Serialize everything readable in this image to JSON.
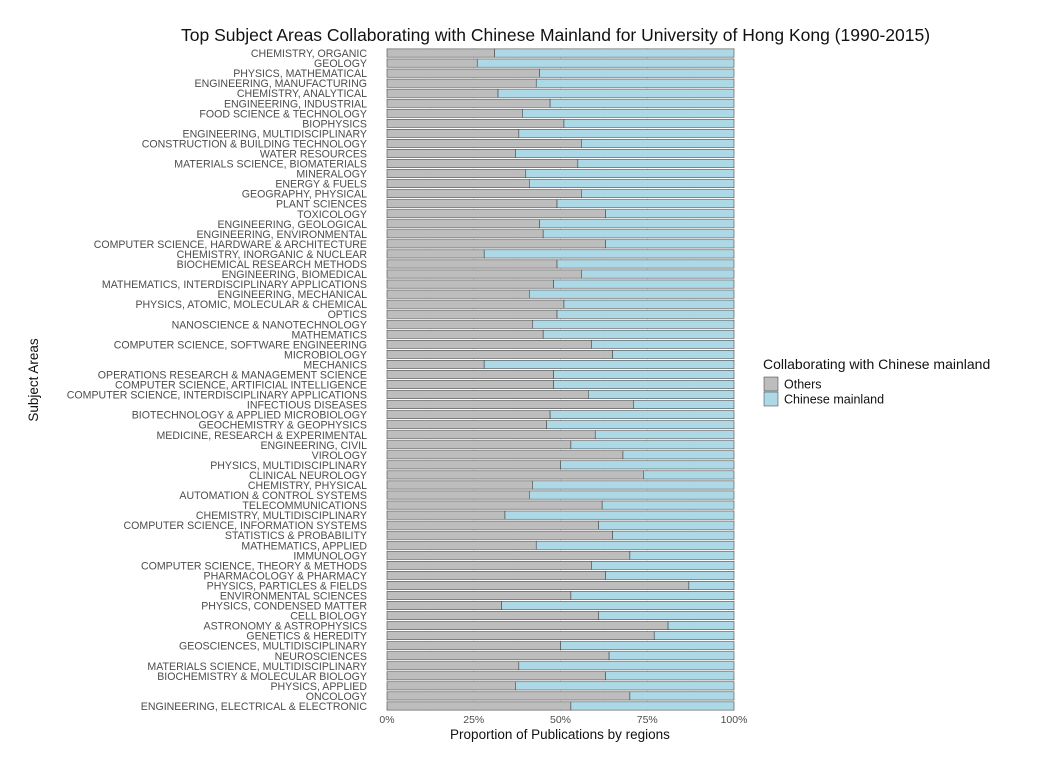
{
  "chart_data": {
    "type": "bar",
    "orientation": "horizontal",
    "stacked": true,
    "title": "Top Subject Areas Collaborating with Chinese Mainland for  University of Hong Kong  (1990-2015)",
    "xlabel": "Proportion of Publications by regions",
    "ylabel": "Subject Areas",
    "xlim": [
      0,
      1
    ],
    "x_ticks": [
      "0%",
      "25%",
      "50%",
      "75%",
      "100%"
    ],
    "grid": true,
    "legend": {
      "title": "Collaborating with Chinese mainland",
      "position": "right",
      "entries": [
        {
          "label": "Others",
          "color": "#bdbdbd"
        },
        {
          "label": "Chinese mainland",
          "color": "#add8e6"
        }
      ]
    },
    "categories": [
      "CHEMISTRY, ORGANIC",
      "GEOLOGY",
      "PHYSICS, MATHEMATICAL",
      "ENGINEERING, MANUFACTURING",
      "CHEMISTRY, ANALYTICAL",
      "ENGINEERING, INDUSTRIAL",
      "FOOD SCIENCE & TECHNOLOGY",
      "BIOPHYSICS",
      "ENGINEERING, MULTIDISCIPLINARY",
      "CONSTRUCTION & BUILDING TECHNOLOGY",
      "WATER RESOURCES",
      "MATERIALS SCIENCE, BIOMATERIALS",
      "MINERALOGY",
      "ENERGY & FUELS",
      "GEOGRAPHY, PHYSICAL",
      "PLANT SCIENCES",
      "TOXICOLOGY",
      "ENGINEERING, GEOLOGICAL",
      "ENGINEERING, ENVIRONMENTAL",
      "COMPUTER SCIENCE, HARDWARE & ARCHITECTURE",
      "CHEMISTRY, INORGANIC & NUCLEAR",
      "BIOCHEMICAL RESEARCH METHODS",
      "ENGINEERING, BIOMEDICAL",
      "MATHEMATICS, INTERDISCIPLINARY APPLICATIONS",
      "ENGINEERING, MECHANICAL",
      "PHYSICS, ATOMIC, MOLECULAR & CHEMICAL",
      "OPTICS",
      "NANOSCIENCE & NANOTECHNOLOGY",
      "MATHEMATICS",
      "COMPUTER SCIENCE, SOFTWARE ENGINEERING",
      "MICROBIOLOGY",
      "MECHANICS",
      "OPERATIONS RESEARCH & MANAGEMENT SCIENCE",
      "COMPUTER SCIENCE, ARTIFICIAL INTELLIGENCE",
      "COMPUTER SCIENCE, INTERDISCIPLINARY APPLICATIONS",
      "INFECTIOUS DISEASES",
      "BIOTECHNOLOGY & APPLIED MICROBIOLOGY",
      "GEOCHEMISTRY & GEOPHYSICS",
      "MEDICINE, RESEARCH & EXPERIMENTAL",
      "ENGINEERING, CIVIL",
      "VIROLOGY",
      "PHYSICS, MULTIDISCIPLINARY",
      "CLINICAL NEUROLOGY",
      "CHEMISTRY, PHYSICAL",
      "AUTOMATION & CONTROL SYSTEMS",
      "TELECOMMUNICATIONS",
      "CHEMISTRY, MULTIDISCIPLINARY",
      "COMPUTER SCIENCE, INFORMATION SYSTEMS",
      "STATISTICS & PROBABILITY",
      "MATHEMATICS, APPLIED",
      "IMMUNOLOGY",
      "COMPUTER SCIENCE, THEORY & METHODS",
      "PHARMACOLOGY & PHARMACY",
      "PHYSICS, PARTICLES & FIELDS",
      "ENVIRONMENTAL SCIENCES",
      "PHYSICS, CONDENSED MATTER",
      "CELL BIOLOGY",
      "ASTRONOMY & ASTROPHYSICS",
      "GENETICS & HEREDITY",
      "GEOSCIENCES, MULTIDISCIPLINARY",
      "NEUROSCIENCES",
      "MATERIALS SCIENCE, MULTIDISCIPLINARY",
      "BIOCHEMISTRY & MOLECULAR BIOLOGY",
      "PHYSICS, APPLIED",
      "ONCOLOGY",
      "ENGINEERING, ELECTRICAL & ELECTRONIC"
    ],
    "series": [
      {
        "name": "Others",
        "color": "#bdbdbd",
        "values": [
          0.31,
          0.26,
          0.44,
          0.43,
          0.32,
          0.47,
          0.39,
          0.51,
          0.38,
          0.56,
          0.37,
          0.55,
          0.4,
          0.41,
          0.56,
          0.49,
          0.63,
          0.44,
          0.45,
          0.63,
          0.28,
          0.49,
          0.56,
          0.48,
          0.41,
          0.51,
          0.49,
          0.42,
          0.45,
          0.59,
          0.65,
          0.28,
          0.48,
          0.48,
          0.58,
          0.71,
          0.47,
          0.46,
          0.6,
          0.53,
          0.68,
          0.5,
          0.74,
          0.42,
          0.41,
          0.62,
          0.34,
          0.61,
          0.65,
          0.43,
          0.7,
          0.59,
          0.63,
          0.87,
          0.53,
          0.33,
          0.61,
          0.81,
          0.77,
          0.5,
          0.64,
          0.38,
          0.63,
          0.37,
          0.7,
          0.53
        ]
      },
      {
        "name": "Chinese mainland",
        "color": "#add8e6",
        "values": [
          0.69,
          0.74,
          0.56,
          0.57,
          0.68,
          0.53,
          0.61,
          0.49,
          0.62,
          0.44,
          0.63,
          0.45,
          0.6,
          0.59,
          0.44,
          0.51,
          0.37,
          0.56,
          0.55,
          0.37,
          0.72,
          0.51,
          0.44,
          0.52,
          0.59,
          0.49,
          0.51,
          0.58,
          0.55,
          0.41,
          0.35,
          0.72,
          0.52,
          0.52,
          0.42,
          0.29,
          0.53,
          0.54,
          0.4,
          0.47,
          0.32,
          0.5,
          0.26,
          0.58,
          0.59,
          0.38,
          0.66,
          0.39,
          0.35,
          0.57,
          0.3,
          0.41,
          0.37,
          0.13,
          0.47,
          0.67,
          0.39,
          0.19,
          0.23,
          0.5,
          0.36,
          0.62,
          0.37,
          0.63,
          0.3,
          0.47
        ]
      }
    ]
  }
}
